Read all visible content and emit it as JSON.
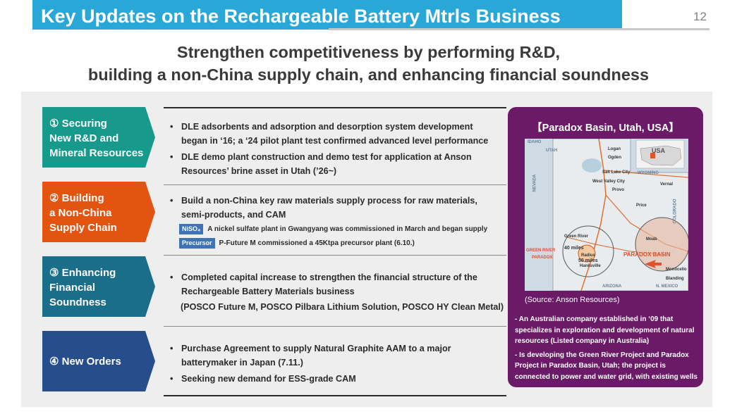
{
  "header": {
    "title": "Key Updates on the Rechargeable Battery Mtrls Business",
    "page_number": "12"
  },
  "headline": {
    "line1": "Strengthen competitiveness by performing R&D,",
    "line2": "building a non-China supply chain, and enhancing financial soundness"
  },
  "sections": [
    {
      "label_lines": [
        "① Securing",
        "New R&D and",
        "Mineral Resources"
      ],
      "color": "#17998b",
      "bullets": [
        "DLE adsorbents and adsorption and desorption system development began in ‘16; a ‘24 pilot plant test confirmed advanced level performance",
        "DLE demo plant construction and demo test for application at Anson Resources’ brine asset in Utah (’26~)"
      ]
    },
    {
      "label_lines": [
        "② Building",
        "a Non-China",
        "Supply Chain"
      ],
      "color": "#e2540f",
      "bullets": [
        "Build a non-China key raw materials supply process for raw materials, semi-products, and CAM"
      ],
      "tags": [
        {
          "tag": "NiSO₄",
          "text": "A nickel sulfate plant in Gwangyang was commissioned in March and began supply"
        },
        {
          "tag": "Precursor",
          "text": "P-Future M commissioned a 45Ktpa precursor plant (6.10.)"
        }
      ]
    },
    {
      "label_lines": [
        "③ Enhancing",
        "Financial",
        "Soundness"
      ],
      "color": "#1b6e8a",
      "bullets": [
        "Completed capital increase to strengthen the financial structure of the Rechargeable Battery Materials business"
      ],
      "extra": "(POSCO Future M, POSCO Pilbara Lithium Solution, POSCO HY Clean Metal)"
    },
    {
      "label_lines": [
        "④ New Orders"
      ],
      "color": "#264e8c",
      "bullets": [
        "Purchase Agreement to supply Natural Graphite AAM to a major batterymaker in Japan (7.11.)",
        "Seeking new demand for ESS-grade CAM"
      ]
    }
  ],
  "panel": {
    "title": "【Paradox Basin, Utah, USA】",
    "source": "(Source: Anson Resources)",
    "notes": [
      "- An Australian company established in ‘09 that specializes in exploration and development of natural resources (Listed company in Australia)",
      "- Is developing the Green River Project and Paradox Project in Paradox Basin, Utah; the project is connected  to power and water grid, with existing wells"
    ],
    "map": {
      "state_label": "UTAH",
      "inset_label": "USA",
      "neighbor_labels": [
        "IDAHO",
        "WYOMING",
        "NEVADA",
        "COLORADO",
        "ARIZONA",
        "N. MEXICO"
      ],
      "cities": [
        "Logan",
        "Ogden",
        "Salt Lake City",
        "West Valley City",
        "Provo",
        "Vernal",
        "Green River",
        "Moab",
        "Hanksville",
        "Blanding",
        "Monticello",
        "Price"
      ],
      "radius_labels": [
        "40 miles",
        "Radius",
        "50 miles"
      ],
      "area_labels": [
        "GREEN RIVER",
        "PARADOX",
        "PARADOX BASIN"
      ]
    }
  }
}
